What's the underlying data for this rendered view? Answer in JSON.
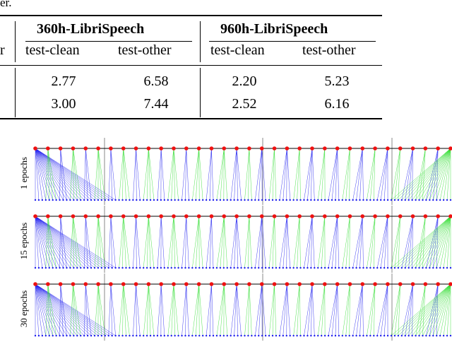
{
  "caption_fragment": "er.",
  "table": {
    "group_headers": [
      "360h-LibriSpeech",
      "960h-LibriSpeech"
    ],
    "first_col_fragment": "r",
    "sub_headers": [
      "test-clean",
      "test-other",
      "test-clean",
      "test-other"
    ],
    "rows": [
      [
        "2.77",
        "6.58",
        "2.20",
        "5.23"
      ],
      [
        "3.00",
        "7.44",
        "2.52",
        "6.16"
      ]
    ]
  },
  "figure": {
    "row_labels": [
      "1 epochs",
      "15 epochs",
      "30 epochs"
    ],
    "colors": {
      "blue": "#2020ee",
      "green": "#30dd30",
      "node": "#ee1111",
      "gray": "#888888"
    }
  }
}
